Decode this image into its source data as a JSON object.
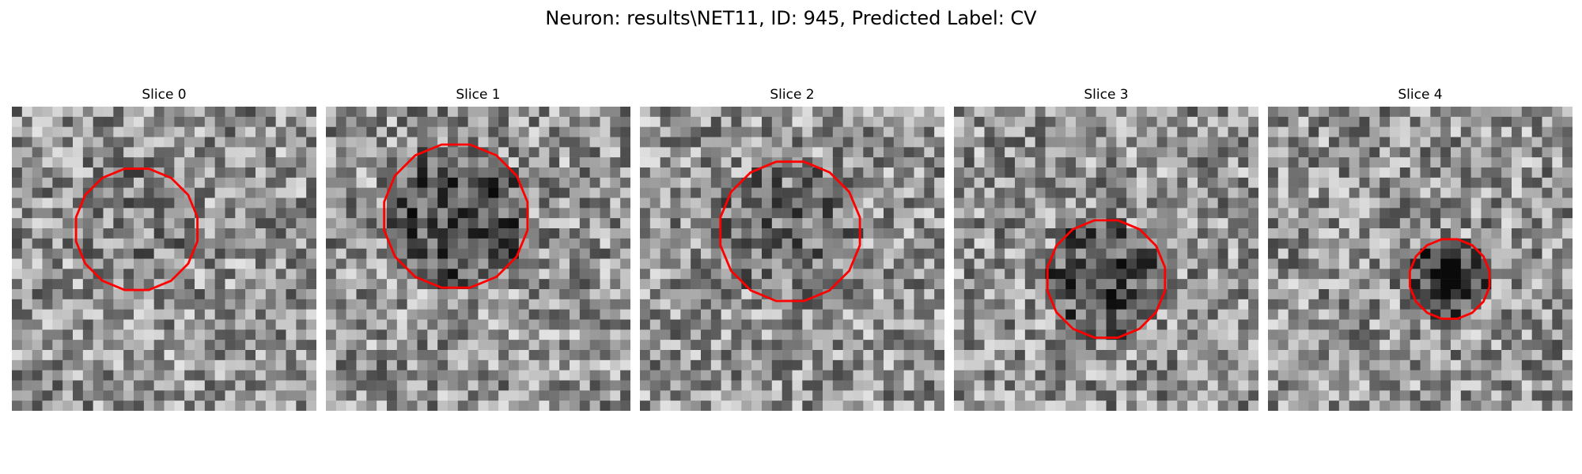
{
  "figure": {
    "title": "Neuron: results\\NET11, ID: 945, Predicted Label: CV"
  },
  "panels": [
    {
      "title": "Slice 0",
      "seed": 11,
      "contour_color": "#ff0000"
    },
    {
      "title": "Slice 1",
      "seed": 23,
      "contour_color": "#ff0000"
    },
    {
      "title": "Slice 2",
      "seed": 37,
      "contour_color": "#ff0000"
    },
    {
      "title": "Slice 3",
      "seed": 41,
      "contour_color": "#ff0000"
    },
    {
      "title": "Slice 4",
      "seed": 59,
      "contour_color": "#ff0000"
    }
  ]
}
